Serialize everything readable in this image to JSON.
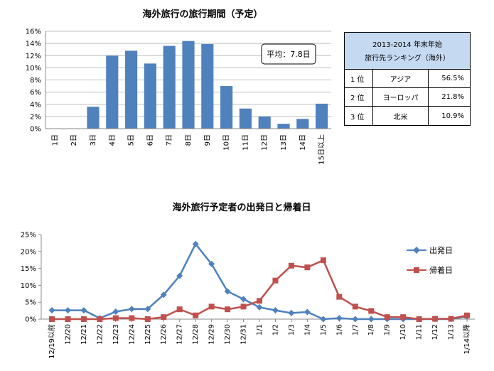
{
  "chart_data": [
    {
      "type": "bar",
      "title": "海外旅行の旅行期間（予定）",
      "categories": [
        "1日",
        "2日",
        "3日",
        "4日",
        "5日",
        "6日",
        "7日",
        "8日",
        "9日",
        "10日",
        "11日",
        "12日",
        "13日",
        "14日",
        "15日以上"
      ],
      "values": [
        0,
        0,
        3.6,
        12.0,
        12.8,
        10.7,
        13.6,
        14.4,
        13.9,
        7.0,
        3.3,
        2.0,
        0.8,
        1.6,
        4.1
      ],
      "unit": "%",
      "yticks": [
        "0%",
        "2%",
        "4%",
        "6%",
        "8%",
        "10%",
        "12%",
        "14%",
        "16%"
      ],
      "ylim": [
        0,
        16
      ],
      "color": "#4f81bd",
      "annotation": "平均：7.8日",
      "grid": true
    },
    {
      "type": "line",
      "title": "海外旅行予定者の出発日と帰着日",
      "categories": [
        "12/19以前",
        "12/20",
        "12/21",
        "12/22",
        "12/23",
        "12/24",
        "12/25",
        "12/26",
        "12/27",
        "12/28",
        "12/29",
        "12/30",
        "12/31",
        "1/1",
        "1/2",
        "1/3",
        "1/4",
        "1/5",
        "1/6",
        "1/7",
        "1/8",
        "1/9",
        "1/10",
        "1/11",
        "1/12",
        "1/13",
        "1/14以降"
      ],
      "yticks": [
        "0%",
        "5%",
        "10%",
        "15%",
        "20%",
        "25%"
      ],
      "ylim": [
        0,
        25
      ],
      "unit": "%",
      "legend_position": "right",
      "series": [
        {
          "name": "出発日",
          "color": "#4f81bd",
          "marker": "diamond",
          "values": [
            2.6,
            2.6,
            2.6,
            0.3,
            2.2,
            3.0,
            3.0,
            7.2,
            12.8,
            22.2,
            16.3,
            8.2,
            5.9,
            3.5,
            2.6,
            1.8,
            2.1,
            0,
            0.3,
            0,
            0,
            0,
            0,
            0,
            0,
            0,
            0.8
          ]
        },
        {
          "name": "帰着日",
          "color": "#c0504d",
          "marker": "square",
          "values": [
            0,
            0,
            0,
            0,
            0.3,
            0.3,
            0,
            0.6,
            2.9,
            1.1,
            3.7,
            2.9,
            3.7,
            5.4,
            11.4,
            15.8,
            15.3,
            17.4,
            6.6,
            3.7,
            2.4,
            0.6,
            0.6,
            0,
            0.1,
            0.1,
            1.1
          ]
        }
      ],
      "grid": false
    }
  ],
  "ranking": {
    "title_line1": "2013-2014 年末年始",
    "title_line2": "旅行先ランキング（海外）",
    "rows": [
      {
        "rank": "1 位",
        "destination": "アジア",
        "percent": "56.5%"
      },
      {
        "rank": "2 位",
        "destination": "ヨーロッパ",
        "percent": "21.8%"
      },
      {
        "rank": "3 位",
        "destination": "北米",
        "percent": "10.9%"
      }
    ]
  }
}
